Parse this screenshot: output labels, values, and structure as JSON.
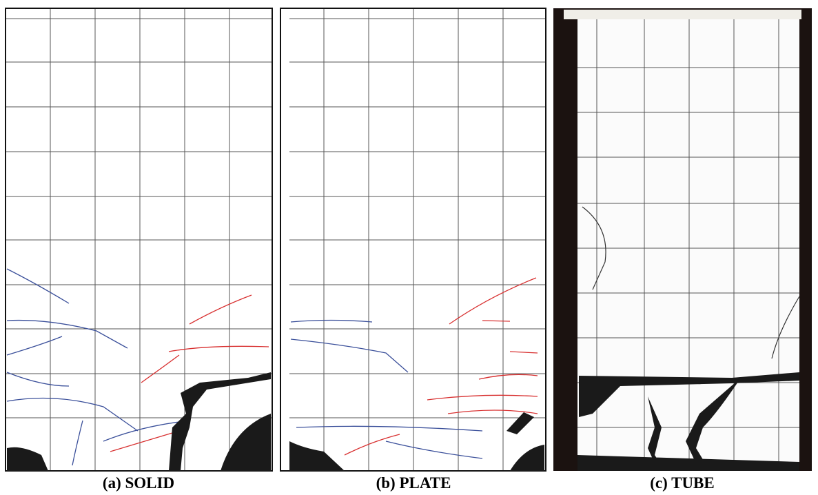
{
  "figure": {
    "panels": [
      {
        "caption": "(a) SOLID"
      },
      {
        "caption": "(b) PLATE"
      },
      {
        "caption": "(c) TUBE"
      }
    ]
  }
}
